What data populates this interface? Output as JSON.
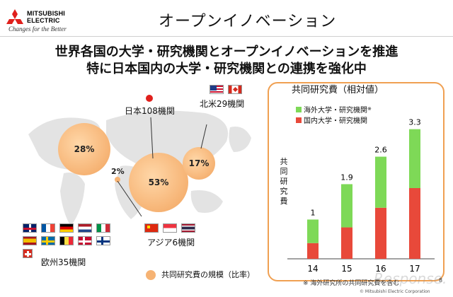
{
  "header": {
    "brand": "MITSUBISHI ELECTRIC",
    "tagline": "Changes for the Better",
    "title": "オープンイノベーション"
  },
  "headline": {
    "line1": "世界各国の大学・研究機関とオープンイノベーションを推進",
    "line2": "特に日本国内の大学・研究機関との連携を強化中"
  },
  "map": {
    "regions": [
      {
        "label": "日本108機関",
        "pct": "53%"
      },
      {
        "label": "北米29機関",
        "pct": "17%"
      },
      {
        "label": "欧州35機関",
        "pct": "28%"
      },
      {
        "label": "アジア6機関",
        "pct": "2%"
      }
    ],
    "legend": "共同研究費の規模（比率）"
  },
  "chart_data": {
    "type": "bar",
    "title": "共同研究費（相対値）",
    "ylabel": "共同研究費",
    "categories": [
      "14",
      "15",
      "16",
      "17"
    ],
    "totals": [
      "1",
      "1.9",
      "2.6",
      "3.3"
    ],
    "series": [
      {
        "name": "国内大学・研究機関",
        "values": [
          0.4,
          0.8,
          1.3,
          1.8
        ],
        "color": "#e8493a"
      },
      {
        "name": "海外大学・研究機関",
        "values": [
          0.6,
          1.1,
          1.3,
          1.5
        ],
        "color": "#7ed957"
      }
    ],
    "ylim": [
      0,
      3.6
    ],
    "legend_note_mark": "※",
    "note": "※ 海外研究所の共同研究費を含む"
  },
  "footer": {
    "copyright": "© Mitsubishi Electric Corporation",
    "page": "8"
  },
  "colors": {
    "accent": "#f0a052",
    "red": "#e0201c"
  },
  "watermark": "Response."
}
